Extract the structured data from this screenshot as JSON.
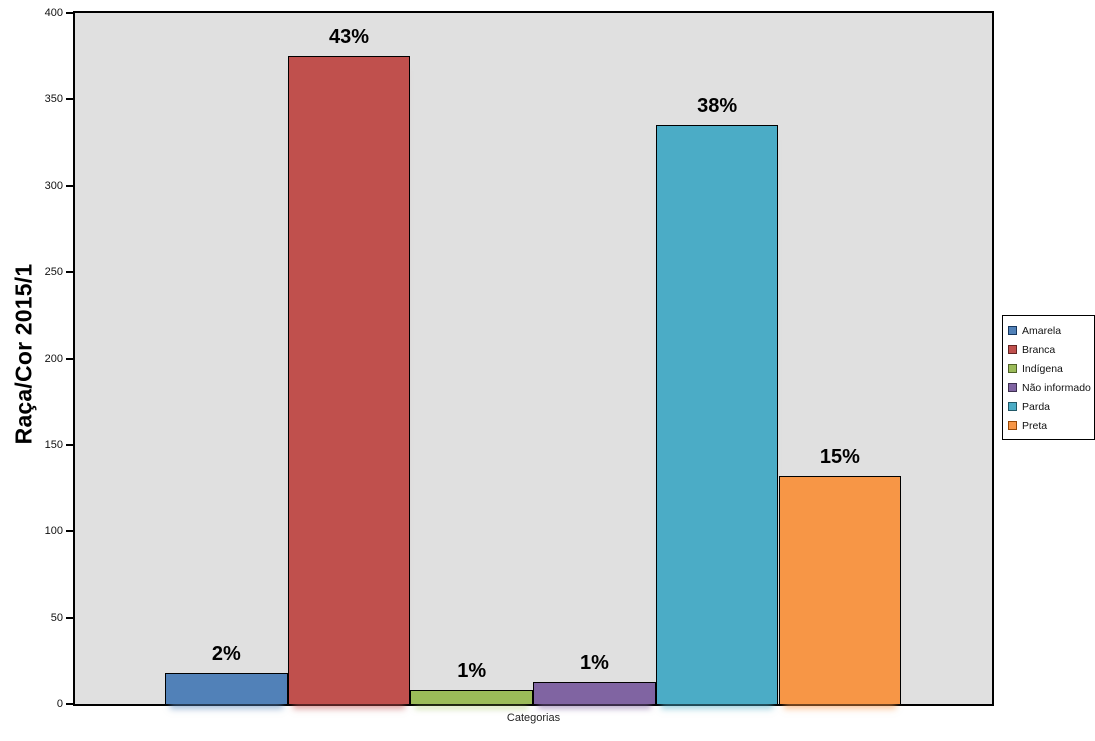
{
  "chart_data": {
    "type": "bar",
    "title": "",
    "ylabel": "Raça/Cor 2015/1",
    "xlabel": "Categorias",
    "ylim": [
      0,
      400
    ],
    "yticks": [
      0,
      50,
      100,
      150,
      200,
      250,
      300,
      350,
      400
    ],
    "grid": false,
    "legend_position": "right",
    "plot_background": "#E0E0E0",
    "categories": [
      "Amarela",
      "Branca",
      "Indígena",
      "Não informado",
      "Parda",
      "Preta"
    ],
    "series": [
      {
        "name": "Amarela",
        "value": 18,
        "percent_label": "2%",
        "color": "#5181B8",
        "edge": "#17375E"
      },
      {
        "name": "Branca",
        "value": 375,
        "percent_label": "43%",
        "color": "#C0504D",
        "edge": "#632523"
      },
      {
        "name": "Indígena",
        "value": 8,
        "percent_label": "1%",
        "color": "#9BBB59",
        "edge": "#4F6228"
      },
      {
        "name": "Não informado",
        "value": 13,
        "percent_label": "1%",
        "color": "#8064A2",
        "edge": "#3F3151"
      },
      {
        "name": "Parda",
        "value": 335,
        "percent_label": "38%",
        "color": "#4BACC6",
        "edge": "#215867"
      },
      {
        "name": "Preta",
        "value": 132,
        "percent_label": "15%",
        "color": "#F79646",
        "edge": "#974806"
      }
    ]
  }
}
